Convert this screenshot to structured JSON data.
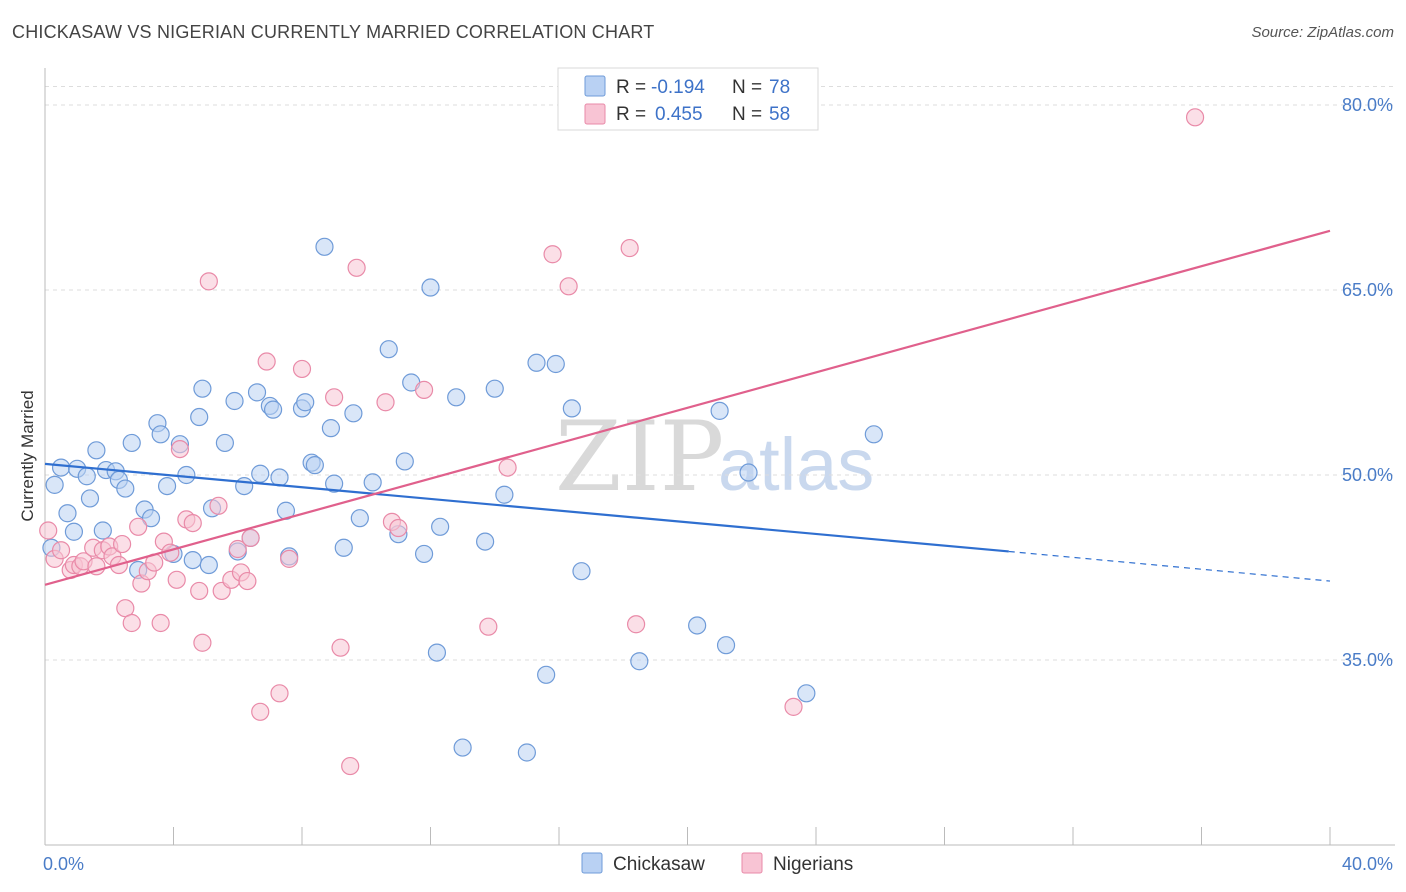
{
  "title": "CHICKASAW VS NIGERIAN CURRENTLY MARRIED CORRELATION CHART",
  "source": "Source: ZipAtlas.com",
  "watermark": {
    "zip": "ZIP",
    "atlas": "atlas"
  },
  "legend": {
    "r_label": "R =",
    "n_label": "N =",
    "rows": [
      {
        "r": "-0.194",
        "n": "78"
      },
      {
        "r": "0.455",
        "n": "58"
      }
    ]
  },
  "colors": {
    "chickasaw_fill": "#b9d1f3",
    "chickasaw_stroke": "#6f9bd8",
    "chickasaw_line": "#2f6fd0",
    "nigerian_fill": "#f8c4d4",
    "nigerian_stroke": "#e98aa8",
    "nigerian_line": "#e0608c",
    "grid": "#dddddd",
    "tick_text": "#4a7cc7"
  },
  "chart_data": {
    "type": "scatter",
    "title": "CHICKASAW VS NIGERIAN CURRENTLY MARRIED CORRELATION CHART",
    "xlabel": "",
    "ylabel": "Currently Married",
    "xlim": [
      0,
      40
    ],
    "ylim": [
      20,
      83
    ],
    "x_tick_labels": [
      "0.0%",
      "40.0%"
    ],
    "y_ticks": [
      35,
      50,
      65,
      80
    ],
    "y_tick_labels": [
      "35.0%",
      "50.0%",
      "65.0%",
      "80.0%"
    ],
    "grid": true,
    "legend_position": "top-center",
    "series": [
      {
        "name": "Chickasaw",
        "r": -0.194,
        "n": 78,
        "trend": {
          "x0": 0,
          "y0": 50.9,
          "x1": 30,
          "y1": 43.8,
          "dash_to_x": 40,
          "dash_to_y": 41.4
        },
        "points": [
          [
            0.2,
            44.1
          ],
          [
            0.3,
            49.2
          ],
          [
            0.5,
            50.6
          ],
          [
            0.7,
            46.9
          ],
          [
            0.9,
            45.4
          ],
          [
            1.0,
            50.5
          ],
          [
            1.3,
            49.9
          ],
          [
            1.4,
            48.1
          ],
          [
            1.6,
            52.0
          ],
          [
            1.8,
            45.5
          ],
          [
            1.9,
            50.4
          ],
          [
            2.2,
            50.3
          ],
          [
            2.3,
            49.6
          ],
          [
            2.5,
            48.9
          ],
          [
            2.7,
            52.6
          ],
          [
            2.9,
            42.3
          ],
          [
            3.1,
            47.2
          ],
          [
            3.3,
            46.5
          ],
          [
            3.5,
            54.2
          ],
          [
            3.6,
            53.3
          ],
          [
            3.8,
            49.1
          ],
          [
            4.0,
            43.6
          ],
          [
            4.2,
            52.5
          ],
          [
            4.4,
            50.0
          ],
          [
            4.6,
            43.1
          ],
          [
            4.8,
            54.7
          ],
          [
            4.9,
            57.0
          ],
          [
            5.1,
            42.7
          ],
          [
            5.2,
            47.3
          ],
          [
            5.6,
            52.6
          ],
          [
            5.9,
            56.0
          ],
          [
            6.0,
            43.8
          ],
          [
            6.2,
            49.1
          ],
          [
            6.4,
            44.9
          ],
          [
            6.6,
            56.7
          ],
          [
            6.7,
            50.1
          ],
          [
            7.0,
            55.6
          ],
          [
            7.1,
            55.3
          ],
          [
            7.3,
            49.8
          ],
          [
            7.5,
            47.1
          ],
          [
            7.6,
            43.4
          ],
          [
            8.0,
            55.4
          ],
          [
            8.1,
            55.9
          ],
          [
            8.3,
            51.0
          ],
          [
            8.4,
            50.8
          ],
          [
            8.7,
            68.5
          ],
          [
            8.9,
            53.8
          ],
          [
            9.0,
            49.3
          ],
          [
            9.3,
            44.1
          ],
          [
            9.6,
            55.0
          ],
          [
            9.8,
            46.5
          ],
          [
            10.2,
            49.4
          ],
          [
            10.7,
            60.2
          ],
          [
            11.0,
            45.2
          ],
          [
            11.2,
            51.1
          ],
          [
            11.4,
            57.5
          ],
          [
            11.8,
            43.6
          ],
          [
            12.0,
            65.2
          ],
          [
            12.2,
            35.6
          ],
          [
            12.3,
            45.8
          ],
          [
            12.8,
            56.3
          ],
          [
            13.0,
            27.9
          ],
          [
            13.7,
            44.6
          ],
          [
            14.0,
            57.0
          ],
          [
            14.3,
            48.4
          ],
          [
            15.0,
            27.5
          ],
          [
            15.3,
            59.1
          ],
          [
            15.6,
            33.8
          ],
          [
            15.9,
            59.0
          ],
          [
            16.4,
            55.4
          ],
          [
            16.7,
            42.2
          ],
          [
            18.5,
            34.9
          ],
          [
            20.3,
            37.8
          ],
          [
            21.0,
            55.2
          ],
          [
            21.2,
            36.2
          ],
          [
            21.9,
            50.2
          ],
          [
            23.7,
            32.3
          ],
          [
            25.8,
            53.3
          ]
        ]
      },
      {
        "name": "Nigerians",
        "r": 0.455,
        "n": 58,
        "trend": {
          "x0": 0,
          "y0": 41.1,
          "x1": 40,
          "y1": 69.8
        },
        "points": [
          [
            0.1,
            45.5
          ],
          [
            0.3,
            43.2
          ],
          [
            0.5,
            43.9
          ],
          [
            0.8,
            42.3
          ],
          [
            0.9,
            42.7
          ],
          [
            1.1,
            42.6
          ],
          [
            1.2,
            43.0
          ],
          [
            1.5,
            44.1
          ],
          [
            1.6,
            42.6
          ],
          [
            1.8,
            43.9
          ],
          [
            2.0,
            44.2
          ],
          [
            2.1,
            43.4
          ],
          [
            2.3,
            42.7
          ],
          [
            2.4,
            44.4
          ],
          [
            2.5,
            39.2
          ],
          [
            2.7,
            38.0
          ],
          [
            2.9,
            45.8
          ],
          [
            3.0,
            41.2
          ],
          [
            3.2,
            42.2
          ],
          [
            3.4,
            42.9
          ],
          [
            3.6,
            38.0
          ],
          [
            3.7,
            44.6
          ],
          [
            3.9,
            43.7
          ],
          [
            4.1,
            41.5
          ],
          [
            4.2,
            52.1
          ],
          [
            4.4,
            46.4
          ],
          [
            4.6,
            46.1
          ],
          [
            4.8,
            40.6
          ],
          [
            4.9,
            36.4
          ],
          [
            5.1,
            65.7
          ],
          [
            5.4,
            47.5
          ],
          [
            5.5,
            40.6
          ],
          [
            5.8,
            41.5
          ],
          [
            6.0,
            44.0
          ],
          [
            6.1,
            42.1
          ],
          [
            6.3,
            41.4
          ],
          [
            6.4,
            44.9
          ],
          [
            6.7,
            30.8
          ],
          [
            6.9,
            59.2
          ],
          [
            7.3,
            32.3
          ],
          [
            7.6,
            43.2
          ],
          [
            8.0,
            58.6
          ],
          [
            9.0,
            56.3
          ],
          [
            9.2,
            36.0
          ],
          [
            9.5,
            26.4
          ],
          [
            9.7,
            66.8
          ],
          [
            10.6,
            55.9
          ],
          [
            10.8,
            46.2
          ],
          [
            11.0,
            45.7
          ],
          [
            11.8,
            56.9
          ],
          [
            13.8,
            37.7
          ],
          [
            14.4,
            50.6
          ],
          [
            15.8,
            67.9
          ],
          [
            16.3,
            65.3
          ],
          [
            18.2,
            68.4
          ],
          [
            18.4,
            37.9
          ],
          [
            23.3,
            31.2
          ],
          [
            35.8,
            79.0
          ]
        ]
      }
    ]
  },
  "bottom_legend": [
    "Chickasaw",
    "Nigerians"
  ]
}
